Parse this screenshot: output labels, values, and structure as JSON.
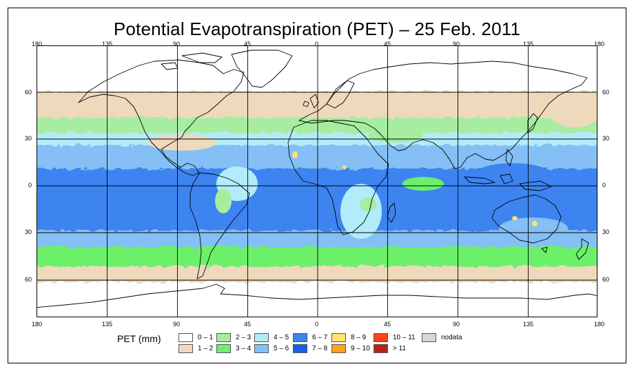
{
  "title": "Potential Evapotranspiration (PET) – 25 Feb. 2011",
  "axes": {
    "lon_labels": [
      "180",
      "135",
      "90",
      "45",
      "0",
      "45",
      "90",
      "135",
      "180"
    ],
    "lat_labels": [
      "60",
      "30",
      "0",
      "30",
      "60"
    ]
  },
  "legend": {
    "title": "PET (mm)",
    "items": [
      {
        "label": "0 – 1",
        "color": "#ffffff"
      },
      {
        "label": "1 – 2",
        "color": "#efd9bc"
      },
      {
        "label": "2 – 3",
        "color": "#a6ed9f"
      },
      {
        "label": "3 – 4",
        "color": "#6cf06a"
      },
      {
        "label": "4 – 5",
        "color": "#b2ecfa"
      },
      {
        "label": "5 – 6",
        "color": "#84bff5"
      },
      {
        "label": "6 – 7",
        "color": "#3d84f0"
      },
      {
        "label": "7 – 8",
        "color": "#1a5de8"
      },
      {
        "label": "8 – 9",
        "color": "#ffe36e"
      },
      {
        "label": "9 – 10",
        "color": "#ffa318"
      },
      {
        "label": "10 – 11",
        "color": "#ff4516"
      },
      {
        "label": "> 11",
        "color": "#b5231b"
      },
      {
        "label": "nodata",
        "color": "#d6d6d6"
      }
    ]
  },
  "pet_zonal_bands": [
    {
      "lat_range": [
        90,
        62
      ],
      "class": "0 – 1"
    },
    {
      "lat_range": [
        62,
        48
      ],
      "class": "1 – 2"
    },
    {
      "lat_range": [
        48,
        38
      ],
      "class": "2 – 3"
    },
    {
      "lat_range": [
        38,
        32
      ],
      "class": "4 – 5"
    },
    {
      "lat_range": [
        32,
        20
      ],
      "class": "5 – 6"
    },
    {
      "lat_range": [
        20,
        -25
      ],
      "class": "6 – 7"
    },
    {
      "lat_range": [
        -25,
        -35
      ],
      "class": "5 – 6"
    },
    {
      "lat_range": [
        -35,
        -45
      ],
      "class": "3 – 4"
    },
    {
      "lat_range": [
        -45,
        -58
      ],
      "class": "1 – 2"
    },
    {
      "lat_range": [
        -58,
        -90
      ],
      "class": "0 – 1"
    }
  ]
}
